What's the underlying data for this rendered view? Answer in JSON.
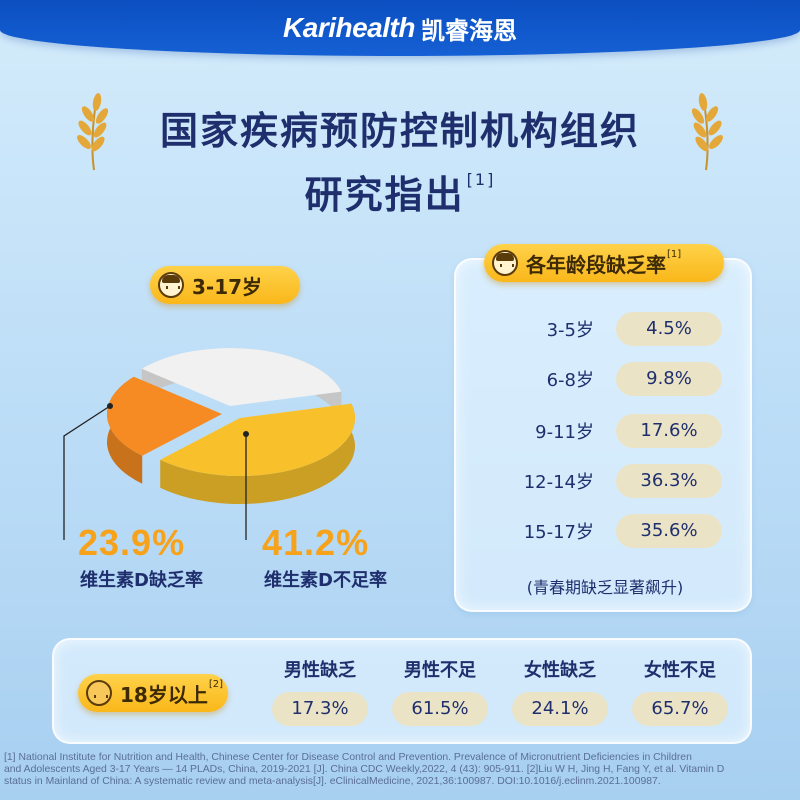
{
  "header": {
    "brand_en": "Karihealth",
    "brand_cn": "凯睿海恩"
  },
  "title": {
    "line1": "国家疾病预防控制机构组织",
    "line2": "研究指出",
    "ref": "[1]"
  },
  "child_badge": {
    "label": "3-17岁",
    "icon": "child-face-icon"
  },
  "chart_data": {
    "type": "pie",
    "slices": [
      {
        "name": "维生素D不足率",
        "value": 41.2,
        "label": "41.2%",
        "color": "#f8c12c"
      },
      {
        "name": "维生素D缺乏率",
        "value": 23.9,
        "label": "23.9%",
        "color": "#f58b22"
      },
      {
        "name": "",
        "value": 34.9,
        "color": "#f1f1f1"
      }
    ]
  },
  "pie_labels": {
    "deficiency": {
      "value": "23.9%",
      "label": "维生素D缺乏率"
    },
    "insufficiency": {
      "value": "41.2%",
      "label": "维生素D不足率"
    }
  },
  "age_panel": {
    "title": "各年龄段缺乏率",
    "ref": "[1]",
    "rows": [
      {
        "age": "3-5岁",
        "value": "4.5%"
      },
      {
        "age": "6-8岁",
        "value": "9.8%"
      },
      {
        "age": "9-11岁",
        "value": "17.6%"
      },
      {
        "age": "12-14岁",
        "value": "36.3%"
      },
      {
        "age": "15-17岁",
        "value": "35.6%"
      }
    ],
    "note": "(青春期缺乏显著飙升)"
  },
  "adult_panel": {
    "label": "18岁以上",
    "ref": "[2]",
    "icon": "adult-face-icon",
    "groups": [
      {
        "head": "男性缺乏",
        "value": "17.3%"
      },
      {
        "head": "男性不足",
        "value": "61.5%"
      },
      {
        "head": "女性缺乏",
        "value": "24.1%"
      },
      {
        "head": "女性不足",
        "value": "65.7%"
      }
    ]
  },
  "references": {
    "line1": "[1] National Institute for Nutrition and Health, Chinese Center for Disease Control and Prevention. Prevalence  of Micronutrient Deficiencies in Children",
    "line2": "and Adolescents Aged 3-17 Years — 14 PLADs, China, 2019-2021 [J]. China CDC Weekly,2022, 4 (43): 905-911.    [2]Liu W H, Jing H, Fang Y, et al. Vitamin D",
    "line3": "status in Mainland of China: A systematic review and meta-analysis[J]. eClinicalMedicine, 2021,36:100987.  DOI:10.1016/j.eclinm.2021.100987."
  }
}
